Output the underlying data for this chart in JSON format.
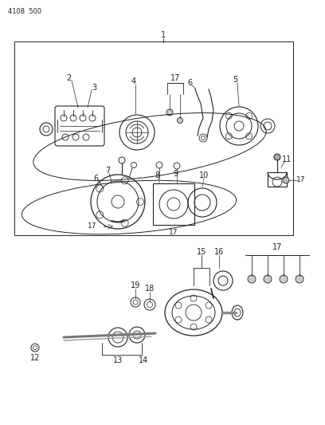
{
  "bg_color": "#ffffff",
  "lc": "#222222",
  "title": "4108  500",
  "fig_width": 4.08,
  "fig_height": 5.33,
  "dpi": 100
}
